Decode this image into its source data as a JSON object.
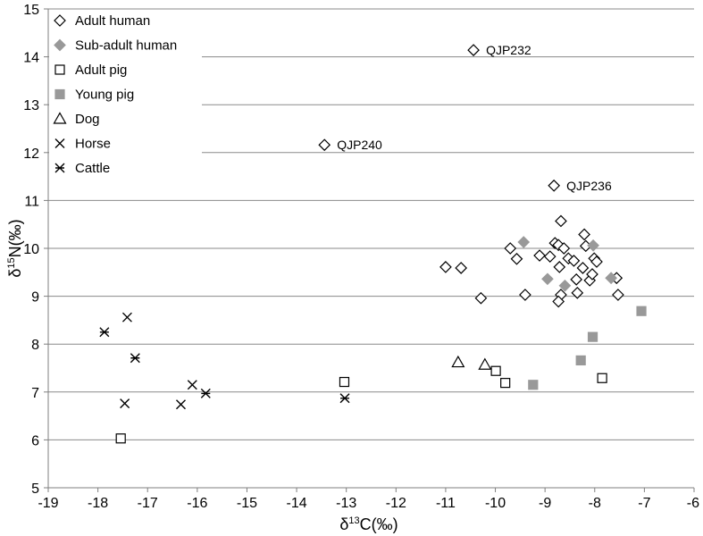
{
  "chart_data": {
    "type": "scatter",
    "xlabel": {
      "prefix": "δ",
      "sup": "13",
      "suffix": "C(‰)"
    },
    "ylabel": {
      "prefix": "δ",
      "sup": "15",
      "suffix": "N(‰)"
    },
    "xlim": [
      -19,
      -6
    ],
    "ylim": [
      5,
      15
    ],
    "xticks": [
      -19,
      -18,
      -17,
      -16,
      -15,
      -14,
      -13,
      -12,
      -11,
      -10,
      -9,
      -8,
      -7,
      -6
    ],
    "yticks": [
      15,
      14,
      13,
      12,
      11,
      10,
      9,
      8,
      7,
      6,
      5
    ],
    "grid": true,
    "legend": "top-left",
    "colors": {
      "marker": "#000000",
      "gray": "#999999",
      "grid": "#8a8a8a",
      "axis": "#7f7f7f"
    },
    "series": [
      {
        "name": "Adult human",
        "marker": "diamond",
        "filled": false,
        "color": "#000000",
        "points": [
          [
            -10.44,
            14.14
          ],
          [
            -13.44,
            12.16
          ],
          [
            -8.82,
            11.31
          ],
          [
            -11.0,
            9.61
          ],
          [
            -10.69,
            9.59
          ],
          [
            -10.29,
            8.96
          ],
          [
            -9.7,
            10.0
          ],
          [
            -9.57,
            9.78
          ],
          [
            -9.4,
            9.03
          ],
          [
            -9.11,
            9.85
          ],
          [
            -8.9,
            9.83
          ],
          [
            -8.8,
            10.11
          ],
          [
            -8.73,
            10.07
          ],
          [
            -8.68,
            10.57
          ],
          [
            -8.62,
            10.0
          ],
          [
            -8.53,
            9.79
          ],
          [
            -8.71,
            9.61
          ],
          [
            -8.68,
            9.03
          ],
          [
            -8.73,
            8.89
          ],
          [
            -8.42,
            9.74
          ],
          [
            -8.37,
            9.35
          ],
          [
            -8.35,
            9.07
          ],
          [
            -8.21,
            10.29
          ],
          [
            -8.18,
            10.05
          ],
          [
            -8.24,
            9.59
          ],
          [
            -8.1,
            9.33
          ],
          [
            -8.05,
            9.46
          ],
          [
            -8.01,
            9.79
          ],
          [
            -7.96,
            9.72
          ],
          [
            -7.56,
            9.38
          ],
          [
            -7.53,
            9.03
          ]
        ]
      },
      {
        "name": "Sub-adult human",
        "marker": "diamond",
        "filled": true,
        "color": "#999999",
        "points": [
          [
            -9.43,
            10.13
          ],
          [
            -8.95,
            9.36
          ],
          [
            -8.6,
            9.22
          ],
          [
            -8.03,
            10.06
          ],
          [
            -7.67,
            9.38
          ]
        ]
      },
      {
        "name": "Adult pig",
        "marker": "square",
        "filled": false,
        "color": "#000000",
        "points": [
          [
            -17.54,
            6.03
          ],
          [
            -13.04,
            7.21
          ],
          [
            -9.99,
            7.44
          ],
          [
            -9.8,
            7.19
          ],
          [
            -7.85,
            7.29
          ]
        ]
      },
      {
        "name": "Young pig",
        "marker": "square",
        "filled": true,
        "color": "#999999",
        "points": [
          [
            -9.24,
            7.15
          ],
          [
            -8.28,
            7.66
          ],
          [
            -8.04,
            8.15
          ],
          [
            -7.06,
            8.69
          ]
        ]
      },
      {
        "name": "Dog",
        "marker": "triangle",
        "filled": false,
        "color": "#000000",
        "points": [
          [
            -10.75,
            7.62
          ],
          [
            -10.21,
            7.57
          ]
        ]
      },
      {
        "name": "Horse",
        "marker": "x",
        "filled": false,
        "color": "#000000",
        "points": [
          [
            -17.41,
            8.56
          ],
          [
            -17.46,
            6.76
          ],
          [
            -16.1,
            7.15
          ],
          [
            -16.33,
            6.74
          ]
        ]
      },
      {
        "name": "Cattle",
        "marker": "asterisk",
        "filled": false,
        "color": "#000000",
        "points": [
          [
            -17.87,
            8.25
          ],
          [
            -17.25,
            7.71
          ],
          [
            -15.83,
            6.97
          ],
          [
            -13.03,
            6.87
          ]
        ]
      }
    ],
    "annotations": [
      {
        "text": "QJP232",
        "x": -10.44,
        "y": 14.14
      },
      {
        "text": "QJP240",
        "x": -13.44,
        "y": 12.16
      },
      {
        "text": "QJP236",
        "x": -8.82,
        "y": 11.31
      }
    ]
  }
}
